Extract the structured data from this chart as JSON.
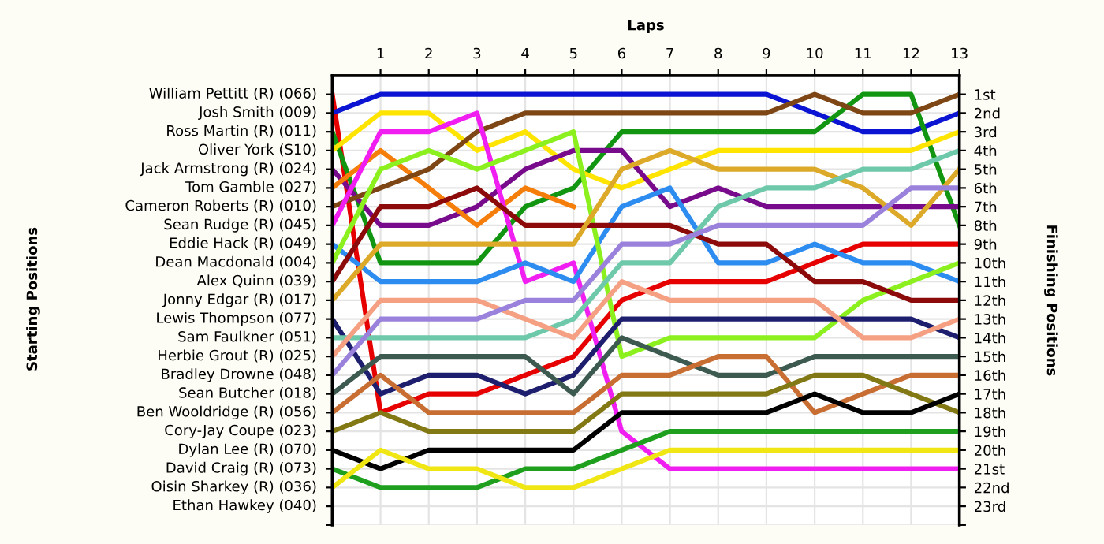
{
  "chart_data": {
    "type": "line",
    "xlabel": "Laps",
    "y2label": "Finishing Positions",
    "x": [
      0,
      1,
      2,
      3,
      4,
      5,
      6,
      7,
      8,
      9,
      10,
      11,
      12,
      13
    ],
    "xlim": [
      0,
      13
    ],
    "xticks": [
      1,
      2,
      3,
      4,
      5,
      6,
      7,
      8,
      9,
      10,
      11,
      12,
      13
    ],
    "y2lim": [
      24,
      0
    ],
    "y2ticks": [
      {
        "value": 1,
        "label": "1st"
      },
      {
        "value": 2,
        "label": "2nd"
      },
      {
        "value": 3,
        "label": "3rd"
      },
      {
        "value": 4,
        "label": "4th"
      },
      {
        "value": 5,
        "label": "5th"
      },
      {
        "value": 6,
        "label": "6th"
      },
      {
        "value": 7,
        "label": "7th"
      },
      {
        "value": 8,
        "label": "8th"
      },
      {
        "value": 9,
        "label": "9th"
      },
      {
        "value": 10,
        "label": "10th"
      },
      {
        "value": 11,
        "label": "11th"
      },
      {
        "value": 12,
        "label": "12th"
      },
      {
        "value": 13,
        "label": "13th"
      },
      {
        "value": 14,
        "label": "14th"
      },
      {
        "value": 15,
        "label": "15th"
      },
      {
        "value": 16,
        "label": "16th"
      },
      {
        "value": 17,
        "label": "17th"
      },
      {
        "value": 18,
        "label": "18th"
      },
      {
        "value": 19,
        "label": "19th"
      },
      {
        "value": 20,
        "label": "20th"
      },
      {
        "value": 21,
        "label": "21st"
      },
      {
        "value": 22,
        "label": "22nd"
      },
      {
        "value": 23,
        "label": "23rd"
      },
      {
        "value": 24,
        "label": null
      }
    ],
    "grid": true,
    "marker": "none",
    "line_style": "solid",
    "annotations": [
      "Starting Positions",
      "William Pettitt (R) (066)",
      "Josh Smith (009)",
      "Ross Martin (R) (011)",
      "Oliver York (S10)",
      "Jack Armstrong (R) (024)",
      "Tom Gamble (027)",
      "Cameron Roberts (R) (010)",
      "Sean Rudge (R) (045)",
      "Eddie Hack (R) (049)",
      "Dean Macdonald (004)",
      "Alex Quinn (039)",
      "Jonny Edgar (R) (017)",
      "Lewis Thompson (077)",
      "Sam Faulkner (051)",
      "Herbie Grout (R) (025)",
      "Bradley Drowne (048)",
      "Sean Butcher (018)",
      "Ben Wooldridge (R) (056)",
      "Cory-Jay Coupe (023)",
      "Dylan Lee (R) (070)",
      "David Craig (R) (073)",
      "Oisin Sharkey (R) (036)",
      "Ethan Hawkey (040)"
    ],
    "series": [
      {
        "axis": "y2",
        "color": "#e60000",
        "values": [
          1,
          18,
          17,
          17,
          16,
          15,
          12,
          11,
          11,
          11,
          10,
          9,
          9,
          9
        ]
      },
      {
        "axis": "y2",
        "color": "#0a14d2",
        "values": [
          2,
          1,
          1,
          1,
          1,
          1,
          1,
          1,
          1,
          1,
          2,
          3,
          3,
          2
        ]
      },
      {
        "axis": "y2",
        "color": "#129612",
        "values": [
          3,
          10,
          10,
          10,
          7,
          6,
          3,
          3,
          3,
          3,
          3,
          1,
          1,
          8
        ]
      },
      {
        "axis": "y2",
        "color": "#ffe400",
        "values": [
          4,
          2,
          2,
          4,
          3,
          5,
          6,
          5,
          4,
          4,
          4,
          4,
          4,
          3
        ]
      },
      {
        "axis": "y2",
        "color": "#780a8c",
        "values": [
          5,
          8,
          8,
          7,
          5,
          4,
          4,
          7,
          6,
          7,
          7,
          7,
          7,
          7
        ]
      },
      {
        "axis": "y2",
        "color": "#f57d0a",
        "values": [
          6,
          4,
          6,
          8,
          6,
          7,
          null,
          null,
          null,
          null,
          null,
          null,
          null,
          null
        ]
      },
      {
        "axis": "y2",
        "color": "#7d4614",
        "values": [
          7,
          6,
          5,
          3,
          2,
          2,
          2,
          2,
          2,
          2,
          1,
          2,
          2,
          1
        ]
      },
      {
        "axis": "y2",
        "color": "#f01ef0",
        "values": [
          8,
          3,
          3,
          2,
          11,
          10,
          19,
          21,
          21,
          21,
          21,
          21,
          21,
          21
        ]
      },
      {
        "axis": "y2",
        "color": "#2d8cf0",
        "values": [
          9,
          11,
          11,
          11,
          10,
          11,
          7,
          6,
          10,
          10,
          9,
          10,
          10,
          11
        ]
      },
      {
        "axis": "y2",
        "color": "#8cf01e",
        "values": [
          10,
          5,
          4,
          5,
          4,
          3,
          15,
          14,
          14,
          14,
          14,
          12,
          11,
          10
        ]
      },
      {
        "axis": "y2",
        "color": "#8c0a0a",
        "values": [
          11,
          7,
          7,
          6,
          8,
          8,
          8,
          8,
          9,
          9,
          11,
          11,
          12,
          12
        ]
      },
      {
        "axis": "y2",
        "color": "#dcaa28",
        "values": [
          12,
          9,
          9,
          9,
          9,
          9,
          5,
          4,
          5,
          5,
          5,
          6,
          8,
          5
        ]
      },
      {
        "axis": "y2",
        "color": "#1e1e6e",
        "values": [
          13,
          17,
          16,
          16,
          17,
          16,
          13,
          13,
          13,
          13,
          13,
          13,
          13,
          14
        ]
      },
      {
        "axis": "y2",
        "color": "#6ec8aa",
        "values": [
          14,
          14,
          14,
          14,
          14,
          13,
          10,
          10,
          7,
          6,
          6,
          5,
          5,
          4
        ]
      },
      {
        "axis": "y2",
        "color": "#f5a082",
        "values": [
          15,
          12,
          12,
          12,
          13,
          14,
          11,
          12,
          12,
          12,
          12,
          14,
          14,
          13
        ]
      },
      {
        "axis": "y2",
        "color": "#9a82dc",
        "values": [
          16,
          13,
          13,
          13,
          12,
          12,
          9,
          9,
          8,
          8,
          8,
          8,
          6,
          6
        ]
      },
      {
        "axis": "y2",
        "color": "#3c5a50",
        "values": [
          17,
          15,
          15,
          15,
          15,
          17,
          14,
          15,
          16,
          16,
          15,
          15,
          15,
          15
        ]
      },
      {
        "axis": "y2",
        "color": "#c86e32",
        "values": [
          18,
          16,
          18,
          18,
          18,
          18,
          16,
          16,
          15,
          15,
          18,
          17,
          16,
          16
        ]
      },
      {
        "axis": "y2",
        "color": "#827814",
        "values": [
          19,
          18,
          19,
          19,
          19,
          19,
          17,
          17,
          17,
          17,
          16,
          16,
          17,
          18
        ]
      },
      {
        "axis": "y2",
        "color": "#000000",
        "values": [
          20,
          21,
          20,
          20,
          20,
          20,
          18,
          18,
          18,
          18,
          17,
          18,
          18,
          17
        ]
      },
      {
        "axis": "y2",
        "color": "#1ea01e",
        "values": [
          21,
          22,
          22,
          22,
          21,
          21,
          20,
          19,
          19,
          19,
          19,
          19,
          19,
          19
        ]
      },
      {
        "axis": "y2",
        "color": "#f0e614",
        "values": [
          22,
          20,
          21,
          21,
          22,
          22,
          21,
          20,
          20,
          20,
          20,
          20,
          20,
          20
        ]
      }
    ]
  }
}
